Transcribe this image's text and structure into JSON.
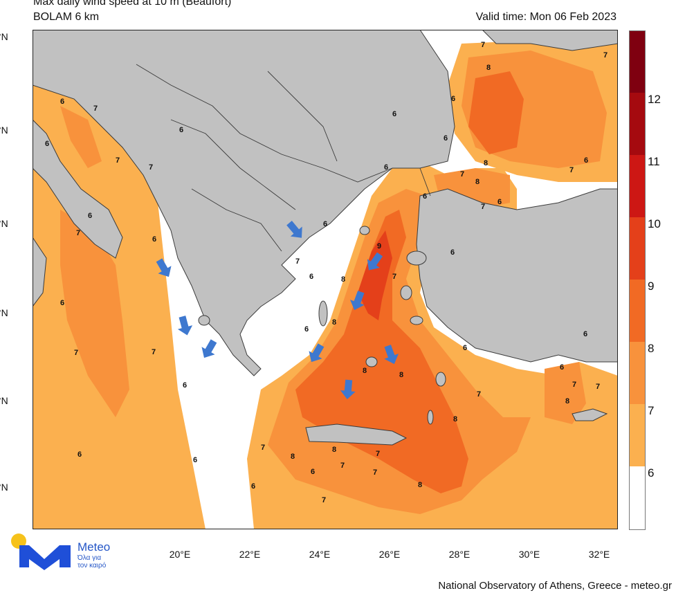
{
  "header": {
    "title": "Max daily wind speed at 10 m (Beaufort)",
    "model": "BOLAM 6 km",
    "valid_time": "Valid time: Mon 06 Feb 2023"
  },
  "axes": {
    "lat_labels": [
      "°N",
      "°N",
      "°N",
      "°N",
      "°N",
      "°N"
    ],
    "lon_labels": [
      "20°E",
      "22°E",
      "24°E",
      "26°E",
      "28°E",
      "30°E",
      "32°E"
    ]
  },
  "colorbar": {
    "levels": [
      "6",
      "7",
      "8",
      "9",
      "10",
      "11",
      "12"
    ],
    "colors": {
      "below6": "#ffffff",
      "b6_7": "#fbb04f",
      "b7_8": "#f8923c",
      "b8_9": "#f16a24",
      "b9_10": "#e4401a",
      "b10_11": "#cd1714",
      "b11_12": "#a50a0f",
      "above12": "#7f0010"
    }
  },
  "map": {
    "land_color": "#c1c1c1",
    "border_color": "#3a3a3a",
    "arrow_color": "#3e78cf",
    "arrow_count": 10,
    "contour_labels": [
      "6",
      "7",
      "8",
      "9"
    ]
  },
  "branding": {
    "name": "Meteo",
    "slogan_line1": "Όλα για",
    "slogan_line2": "τον καιρό",
    "logo_colors": {
      "yellow": "#f6c21b",
      "blue": "#1f4fd8"
    }
  },
  "credit": "National Observatory of Athens, Greece - meteo.gr"
}
